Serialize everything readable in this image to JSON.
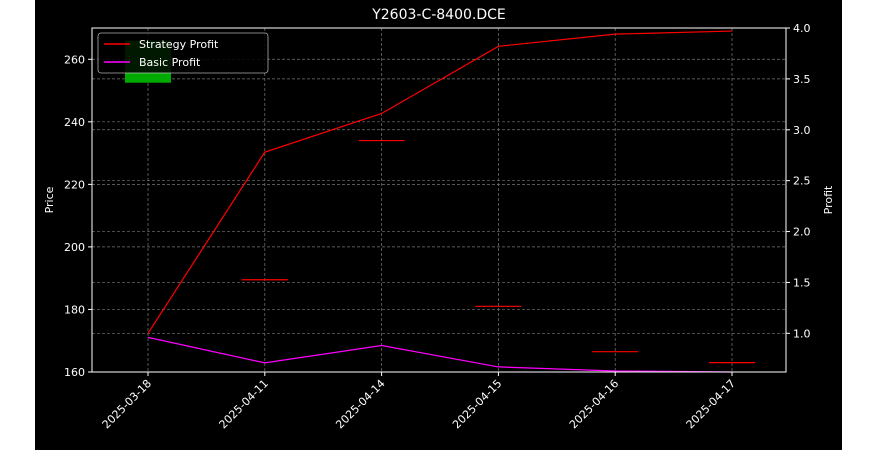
{
  "chart_data": {
    "type": "candlestick+line",
    "title": "Y2603-C-8400.DCE",
    "xlabel": "",
    "ylabel_left": "Price",
    "ylabel_right": "Profit",
    "categories": [
      "2025-03-18",
      "2025-04-11",
      "2025-04-14",
      "2025-04-15",
      "2025-04-16",
      "2025-04-17"
    ],
    "ylim_left": [
      160,
      270
    ],
    "yticks_left": [
      160,
      180,
      200,
      220,
      240,
      260
    ],
    "ylim_right": [
      0.62,
      4.0
    ],
    "yticks_right": [
      1.0,
      1.5,
      2.0,
      2.5,
      3.0,
      3.5,
      4.0
    ],
    "grid": true,
    "legend_placement": "top-left",
    "candles": [
      {
        "date": "2025-03-18",
        "open": 252.5,
        "close": 266.0,
        "color": "#00aa00"
      },
      {
        "date": "2025-04-11",
        "open": 189.5,
        "close": 189.5,
        "color": "#ff0000"
      },
      {
        "date": "2025-04-14",
        "open": 234.0,
        "close": 234.0,
        "color": "#ff0000"
      },
      {
        "date": "2025-04-15",
        "open": 181.0,
        "close": 181.0,
        "color": "#ff0000"
      },
      {
        "date": "2025-04-16",
        "open": 166.5,
        "close": 166.5,
        "color": "#ff0000"
      },
      {
        "date": "2025-04-17",
        "open": 163.0,
        "close": 163.0,
        "color": "#ff0000"
      }
    ],
    "series": [
      {
        "name": "Strategy Profit",
        "axis": "right",
        "color": "#ff0000",
        "values": [
          1.0,
          2.78,
          3.16,
          3.82,
          3.94,
          3.97
        ]
      },
      {
        "name": "Basic Profit",
        "axis": "right",
        "color": "#ff00ff",
        "values": [
          0.96,
          0.71,
          0.88,
          0.67,
          0.63,
          0.62
        ]
      }
    ]
  }
}
